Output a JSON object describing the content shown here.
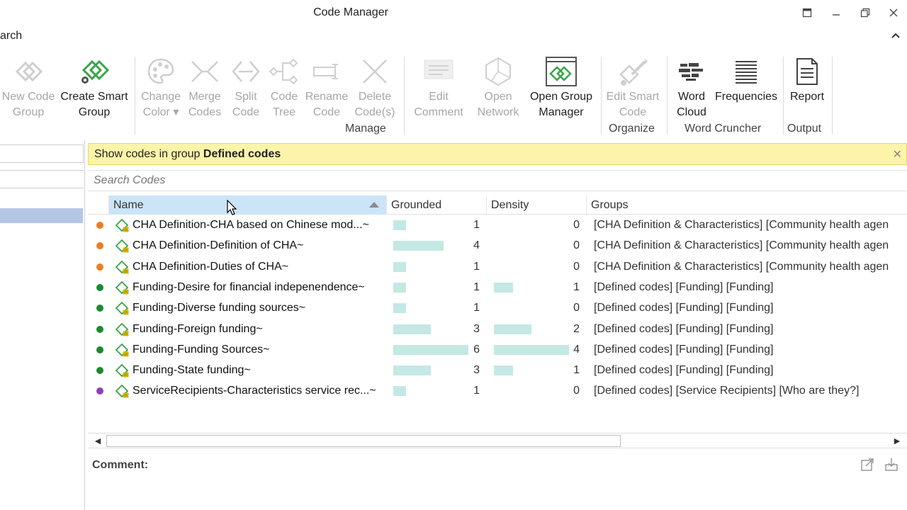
{
  "window": {
    "title": "Code Manager"
  },
  "ribbon_tab": "arch",
  "ribbon": {
    "buttons": [
      {
        "line1": "New Code",
        "line2": "Group",
        "icon": "diamond-icon"
      },
      {
        "line1": "Create Smart",
        "line2": "Group",
        "icon": "smart-group-icon"
      },
      {
        "line1": "Change",
        "line2": "Color ▾",
        "icon": "palette-icon"
      },
      {
        "line1": "Merge",
        "line2": "Codes",
        "icon": "merge-icon"
      },
      {
        "line1": "Split",
        "line2": "Code",
        "icon": "split-icon"
      },
      {
        "line1": "Code",
        "line2": "Tree",
        "icon": "tree-icon"
      },
      {
        "line1": "Rename",
        "line2": "Code",
        "icon": "rename-icon"
      },
      {
        "line1": "Delete",
        "line2": "Code(s)",
        "icon": "delete-icon"
      },
      {
        "line1": "Edit",
        "line2": "Comment",
        "icon": "comment-icon"
      },
      {
        "line1": "Open",
        "line2": "Network",
        "icon": "network-icon"
      },
      {
        "line1": "Open Group",
        "line2": "Manager",
        "icon": "group-manager-icon"
      },
      {
        "line1": "Edit Smart",
        "line2": "Code",
        "icon": "edit-smart-code-icon"
      },
      {
        "line1": "Word",
        "line2": "Cloud",
        "icon": "word-cloud-icon"
      },
      {
        "line1": "Frequencies",
        "line2": "",
        "icon": "frequencies-icon"
      },
      {
        "line1": "Report",
        "line2": "",
        "icon": "report-icon"
      }
    ],
    "groups": [
      "Manage",
      "Organize",
      "Word Cruncher",
      "Output"
    ]
  },
  "filter_banner": {
    "prefix": "Show codes in group",
    "group_name": "Defined codes"
  },
  "search": {
    "placeholder": "Search Codes"
  },
  "table": {
    "columns": [
      "Name",
      "Grounded",
      "Density",
      "Groups"
    ],
    "max_value": 6,
    "rows": [
      {
        "color": "#f07c22",
        "name": "CHA Definition-CHA based on Chinese mod...~",
        "grounded": 1,
        "density": 0,
        "groups": "[CHA Definition & Characteristics] [Community health agen"
      },
      {
        "color": "#f07c22",
        "name": "CHA Definition-Definition of CHA~",
        "grounded": 4,
        "density": 0,
        "groups": "[CHA Definition & Characteristics] [Community health agen"
      },
      {
        "color": "#f07c22",
        "name": "CHA Definition-Duties of CHA~",
        "grounded": 1,
        "density": 0,
        "groups": "[CHA Definition & Characteristics] [Community health agen"
      },
      {
        "color": "#1a8a2e",
        "name": "Funding-Desire for financial indepenendence~",
        "grounded": 1,
        "density": 1,
        "groups": "[Defined codes] [Funding] [Funding]"
      },
      {
        "color": "#1a8a2e",
        "name": "Funding-Diverse funding sources~",
        "grounded": 1,
        "density": 0,
        "groups": "[Defined codes] [Funding] [Funding]"
      },
      {
        "color": "#1a8a2e",
        "name": "Funding-Foreign funding~",
        "grounded": 3,
        "density": 2,
        "groups": "[Defined codes] [Funding] [Funding]"
      },
      {
        "color": "#1a8a2e",
        "name": "Funding-Funding Sources~",
        "grounded": 6,
        "density": 4,
        "groups": "[Defined codes] [Funding] [Funding]"
      },
      {
        "color": "#1a8a2e",
        "name": "Funding-State funding~",
        "grounded": 3,
        "density": 1,
        "groups": "[Defined codes] [Funding] [Funding]"
      },
      {
        "color": "#8e3fb5",
        "name": "ServiceRecipients-Characteristics service rec...~",
        "grounded": 1,
        "density": 0,
        "groups": "[Defined codes] [Service Recipients] [Who are they?]"
      }
    ]
  },
  "comment": {
    "label": "Comment:"
  }
}
